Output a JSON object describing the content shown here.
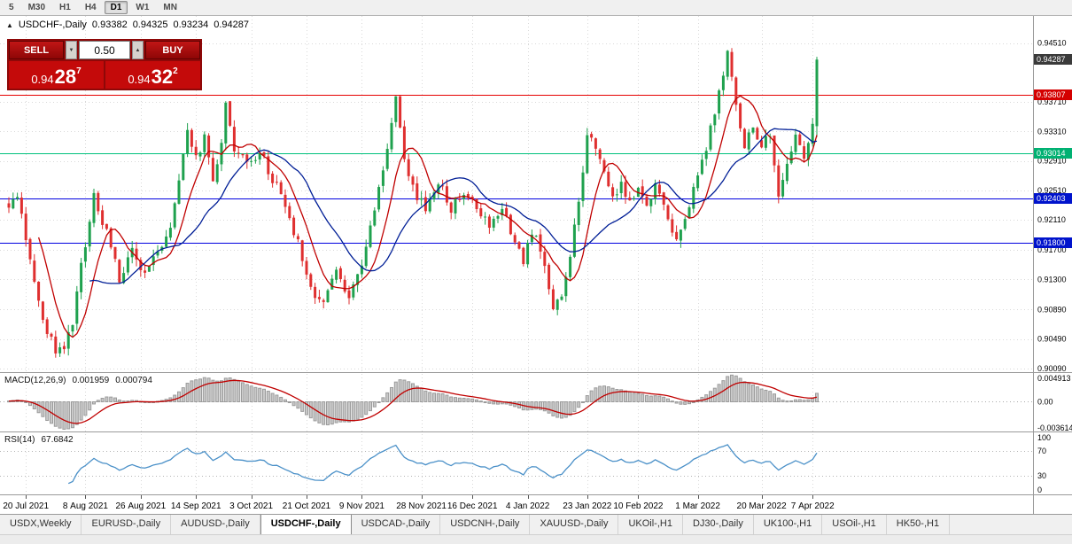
{
  "toolbar": {
    "timeframes": [
      "5",
      "M30",
      "H1",
      "H4",
      "D1",
      "W1",
      "MN"
    ],
    "active_timeframe": "D1"
  },
  "chart_header": {
    "collapse_icon": "▲",
    "symbol": "USDCHF-,Daily",
    "open": "0.93382",
    "high": "0.94325",
    "low": "0.93234",
    "close": "0.94287"
  },
  "trade_panel": {
    "sell_label": "SELL",
    "buy_label": "BUY",
    "volume": "0.50",
    "spin_down_icon": "▼",
    "spin_up_icon": "▲",
    "sell_price": {
      "main": "0.94",
      "pips": "28",
      "pipette": "7"
    },
    "buy_price": {
      "main": "0.94",
      "pips": "32",
      "pipette": "2"
    }
  },
  "chart_data": {
    "type": "candlestick",
    "symbol": "USDCHF-",
    "period": "Daily",
    "ohlc": {
      "open": 0.93382,
      "high": 0.94325,
      "low": 0.93234,
      "close": 0.94287
    },
    "y_axis": {
      "labels": [
        "0.94510",
        "0.93710",
        "0.93310",
        "0.92910",
        "0.92510",
        "0.92110",
        "0.91700",
        "0.91300",
        "0.90890",
        "0.90490",
        "0.90090"
      ],
      "min": 0.9004,
      "max": 0.9488
    },
    "x_axis": {
      "labels": [
        {
          "text": "20 Jul 2021",
          "bar": 4
        },
        {
          "text": "8 Aug 2021",
          "bar": 18
        },
        {
          "text": "26 Aug 2021",
          "bar": 31
        },
        {
          "text": "14 Sep 2021",
          "bar": 44
        },
        {
          "text": "3 Oct 2021",
          "bar": 57
        },
        {
          "text": "21 Oct 2021",
          "bar": 70
        },
        {
          "text": "9 Nov 2021",
          "bar": 83
        },
        {
          "text": "28 Nov 2021",
          "bar": 97
        },
        {
          "text": "16 Dec 2021",
          "bar": 109
        },
        {
          "text": "4 Jan 2022",
          "bar": 122
        },
        {
          "text": "23 Jan 2022",
          "bar": 136
        },
        {
          "text": "10 Feb 2022",
          "bar": 148
        },
        {
          "text": "1 Mar 2022",
          "bar": 162
        },
        {
          "text": "20 Mar 2022",
          "bar": 177
        },
        {
          "text": "7 Apr 2022",
          "bar": 189
        }
      ]
    },
    "current_price": {
      "value": 0.94287,
      "label": "0.94287",
      "box_color": "#3A3A3A"
    },
    "hlines": [
      {
        "price": 0.93807,
        "label": "0.93807",
        "color": "#E60000",
        "box": "#D40000"
      },
      {
        "price": 0.93014,
        "label": "0.93014",
        "color": "#00C17C",
        "box": "#00B172"
      },
      {
        "price": 0.92403,
        "label": "0.92403",
        "color": "#0000E0",
        "box": "#0013CC"
      },
      {
        "price": 0.918,
        "label": "0.91800",
        "color": "#0000E0",
        "box": "#0013CC"
      }
    ],
    "candles": {
      "count": 191,
      "up_color": "#1FA14E",
      "down_color": "#DF2F2F",
      "last_ohlc": [
        0.93382,
        0.94325,
        0.93234,
        0.94287
      ],
      "anchors": [
        [
          0,
          0.9232
        ],
        [
          2,
          0.924
        ],
        [
          5,
          0.9158
        ],
        [
          8,
          0.9072
        ],
        [
          11,
          0.9032
        ],
        [
          13,
          0.904
        ],
        [
          15,
          0.9075
        ],
        [
          17,
          0.9148
        ],
        [
          20,
          0.9242
        ],
        [
          23,
          0.9192
        ],
        [
          26,
          0.9132
        ],
        [
          29,
          0.9166
        ],
        [
          32,
          0.914
        ],
        [
          35,
          0.9162
        ],
        [
          38,
          0.92
        ],
        [
          40,
          0.9262
        ],
        [
          42,
          0.9338
        ],
        [
          44,
          0.9292
        ],
        [
          46,
          0.9324
        ],
        [
          48,
          0.9258
        ],
        [
          50,
          0.9312
        ],
        [
          51,
          0.9366
        ],
        [
          53,
          0.9302
        ],
        [
          56,
          0.9288
        ],
        [
          59,
          0.9304
        ],
        [
          62,
          0.9268
        ],
        [
          65,
          0.9228
        ],
        [
          68,
          0.9178
        ],
        [
          71,
          0.9116
        ],
        [
          74,
          0.9094
        ],
        [
          77,
          0.9142
        ],
        [
          80,
          0.9108
        ],
        [
          83,
          0.9152
        ],
        [
          86,
          0.9224
        ],
        [
          89,
          0.9314
        ],
        [
          91,
          0.9372
        ],
        [
          93,
          0.9298
        ],
        [
          95,
          0.9252
        ],
        [
          98,
          0.9224
        ],
        [
          101,
          0.9262
        ],
        [
          104,
          0.9226
        ],
        [
          107,
          0.9252
        ],
        [
          110,
          0.9232
        ],
        [
          113,
          0.9198
        ],
        [
          116,
          0.9226
        ],
        [
          119,
          0.9178
        ],
        [
          121,
          0.9152
        ],
        [
          123,
          0.9198
        ],
        [
          125,
          0.917
        ],
        [
          127,
          0.912
        ],
        [
          128,
          0.9092
        ],
        [
          130,
          0.9112
        ],
        [
          132,
          0.9164
        ],
        [
          134,
          0.9234
        ],
        [
          136,
          0.933
        ],
        [
          138,
          0.9308
        ],
        [
          140,
          0.9272
        ],
        [
          142,
          0.9244
        ],
        [
          144,
          0.9262
        ],
        [
          146,
          0.923
        ],
        [
          148,
          0.9256
        ],
        [
          150,
          0.9232
        ],
        [
          152,
          0.9262
        ],
        [
          154,
          0.9226
        ],
        [
          156,
          0.9196
        ],
        [
          157,
          0.9182
        ],
        [
          159,
          0.9216
        ],
        [
          161,
          0.9252
        ],
        [
          163,
          0.9292
        ],
        [
          165,
          0.9332
        ],
        [
          167,
          0.9384
        ],
        [
          168,
          0.9412
        ],
        [
          169,
          0.9444
        ],
        [
          170,
          0.94
        ],
        [
          171,
          0.9368
        ],
        [
          173,
          0.9308
        ],
        [
          175,
          0.9342
        ],
        [
          177,
          0.9308
        ],
        [
          179,
          0.9332
        ],
        [
          181,
          0.9248
        ],
        [
          183,
          0.9292
        ],
        [
          185,
          0.9324
        ],
        [
          187,
          0.9296
        ],
        [
          189,
          0.9338
        ],
        [
          190,
          0.94287
        ]
      ]
    },
    "moving_averages": [
      {
        "period": 8,
        "color": "#C00000"
      },
      {
        "period": 20,
        "color": "#001E96"
      }
    ],
    "macd": {
      "label": "MACD(12,26,9)",
      "value_main": "0.001959",
      "value_signal": "0.000794",
      "scale_labels": [
        "0.004913",
        "0.00",
        "-0.003614"
      ],
      "histogram_color": "#C9C9C9",
      "signal_color": "#C00000"
    },
    "rsi": {
      "label": "RSI(14)",
      "value": "67.6842",
      "levels": [
        "100",
        "70",
        "30",
        "0"
      ],
      "line_color": "#4A90C8"
    }
  },
  "tabs": {
    "items": [
      "USDX,Weekly",
      "EURUSD-,Daily",
      "AUDUSD-,Daily",
      "USDCHF-,Daily",
      "USDCAD-,Daily",
      "USDCNH-,Daily",
      "XAUUSD-,Daily",
      "UKOil-,H1",
      "DJ30-,Daily",
      "UK100-,H1",
      "USOil-,H1",
      "HK50-,H1"
    ],
    "active_index": 3
  }
}
